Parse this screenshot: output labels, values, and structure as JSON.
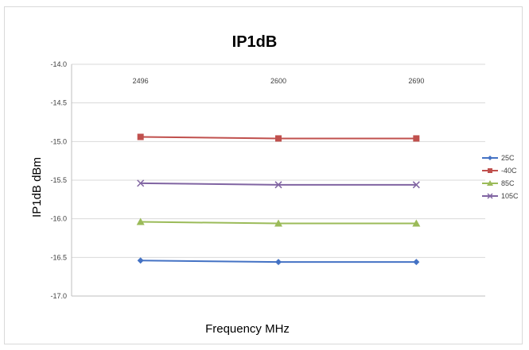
{
  "chart_data": {
    "type": "line",
    "title": "IP1dB",
    "xlabel": "Frequency MHz",
    "ylabel": "IP1dB dBm",
    "categories": [
      "2496",
      "2600",
      "2690"
    ],
    "x_tick_position": "top",
    "ylim": [
      -17.0,
      -14.0
    ],
    "y_ticks": [
      "-14.0",
      "-14.5",
      "-15.0",
      "-15.5",
      "-16.0",
      "-16.5",
      "-17.0"
    ],
    "grid": true,
    "legend": "right",
    "series": [
      {
        "name": "25C",
        "values": [
          -16.54,
          -16.56,
          -16.56
        ],
        "color": "#4472C4",
        "marker": "diamond"
      },
      {
        "name": "-40C",
        "values": [
          -14.94,
          -14.96,
          -14.96
        ],
        "color": "#C0504D",
        "marker": "square"
      },
      {
        "name": "85C",
        "values": [
          -16.04,
          -16.06,
          -16.06
        ],
        "color": "#9BBB59",
        "marker": "triangle"
      },
      {
        "name": "105C",
        "values": [
          -15.54,
          -15.56,
          -15.56
        ],
        "color": "#8064A2",
        "marker": "x"
      }
    ]
  }
}
